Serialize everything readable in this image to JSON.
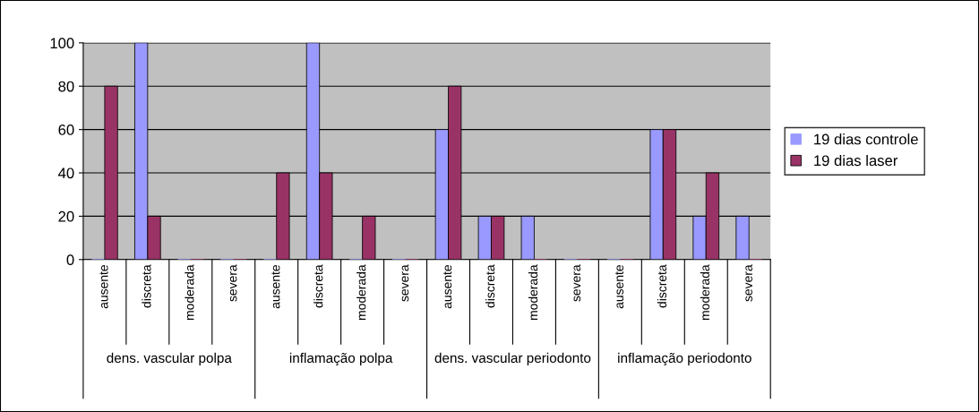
{
  "chart_data": {
    "type": "bar",
    "categories": [
      "ausente",
      "discreta",
      "moderada",
      "severa",
      "ausente",
      "discreta",
      "moderada",
      "severa",
      "ausente",
      "discreta",
      "moderada",
      "severa",
      "ausente",
      "discreta",
      "moderada",
      "severa"
    ],
    "annotations": [
      "dens. vascular polpa",
      "inflamação polpa",
      "dens. vascular periodonto",
      "inflamação periodonto"
    ],
    "series": [
      {
        "name": "19 dias controle",
        "color": "#9999ff",
        "values": [
          0,
          100,
          0,
          0,
          0,
          100,
          0,
          0,
          60,
          20,
          20,
          0,
          0,
          60,
          20,
          20
        ]
      },
      {
        "name": "19 dias laser",
        "color": "#993366",
        "values": [
          80,
          20,
          0,
          0,
          40,
          40,
          20,
          0,
          80,
          20,
          0,
          0,
          0,
          60,
          40,
          0
        ]
      }
    ],
    "ylim": [
      0,
      100
    ],
    "yticks": [
      0,
      20,
      40,
      60,
      80,
      100
    ],
    "grid": "y",
    "legend": "right"
  }
}
